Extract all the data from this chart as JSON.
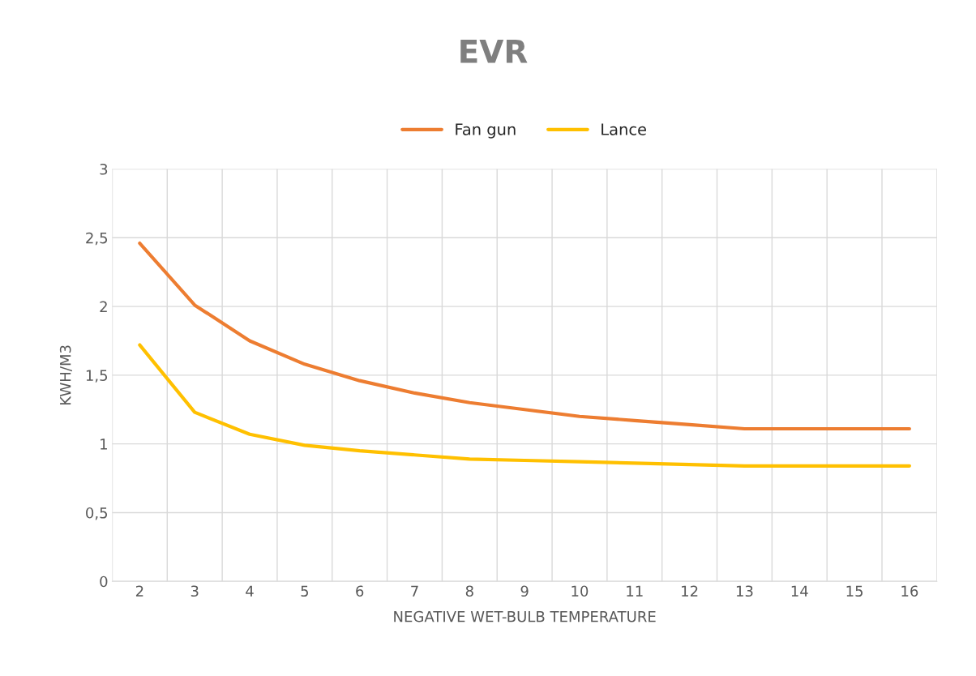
{
  "chart_data": {
    "type": "line",
    "title": "EVR",
    "xlabel": "NEGATIVE WET-BULB TEMPERATURE",
    "ylabel": "KWH/M3",
    "categories": [
      "2",
      "3",
      "4",
      "5",
      "6",
      "7",
      "8",
      "9",
      "10",
      "11",
      "12",
      "13",
      "14",
      "15",
      "16"
    ],
    "series": [
      {
        "name": "Fan gun",
        "color": "#ed7d31",
        "values": [
          2.46,
          2.01,
          1.75,
          1.58,
          1.46,
          1.37,
          1.3,
          1.25,
          1.2,
          1.17,
          1.14,
          1.11,
          1.11,
          1.11,
          1.11
        ]
      },
      {
        "name": "Lance",
        "color": "#ffc000",
        "values": [
          1.72,
          1.23,
          1.07,
          0.99,
          0.95,
          0.92,
          0.89,
          0.88,
          0.87,
          0.86,
          0.85,
          0.84,
          0.84,
          0.84,
          0.84
        ]
      }
    ],
    "ylim": [
      0,
      3
    ],
    "yticks": [
      0,
      {
        "value": 0.5,
        "label": "0,5"
      },
      1,
      {
        "value": 1.5,
        "label": "1,5"
      },
      2,
      {
        "value": 2.5,
        "label": "2,5"
      },
      3
    ],
    "grid": true,
    "legend": "top",
    "marker": "none",
    "line_style": "solid"
  }
}
